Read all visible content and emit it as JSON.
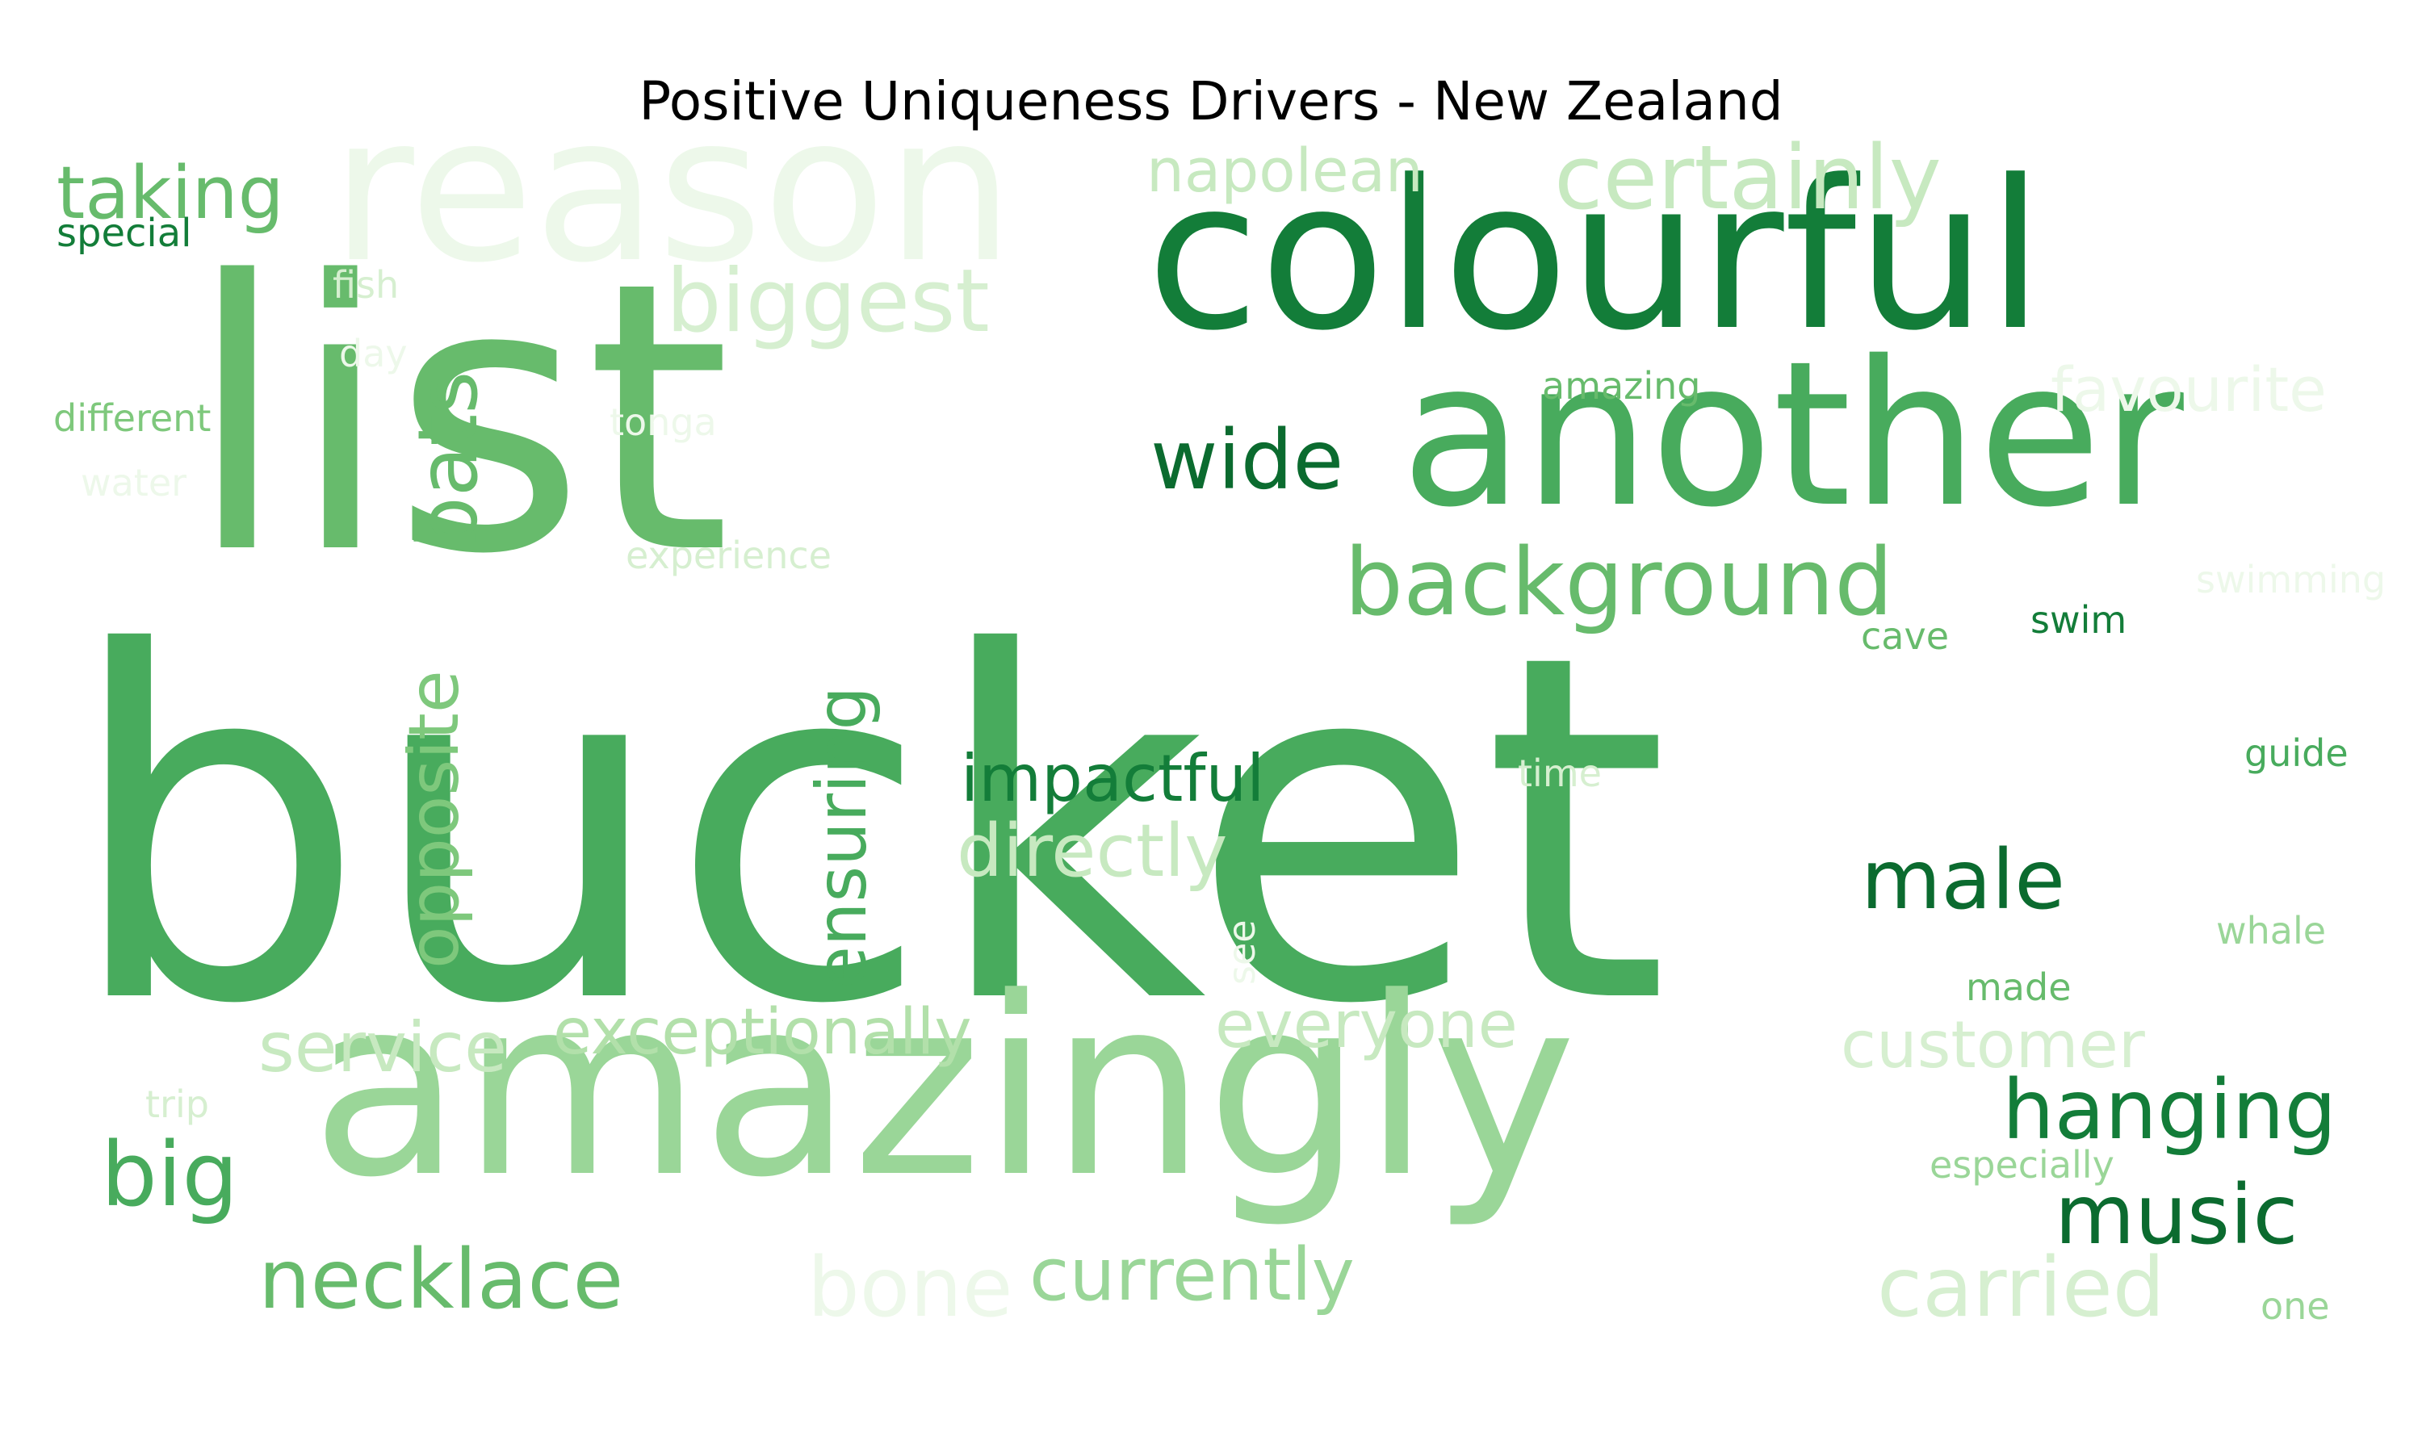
{
  "title": "Positive Uniqueness Drivers - New Zealand",
  "words": [
    {
      "text": "bucket",
      "color": "#48ab5d"
    },
    {
      "text": "list",
      "color": "#67bb6c"
    },
    {
      "text": "amazingly",
      "color": "#9ad698"
    },
    {
      "text": "reason",
      "color": "#edf8ea"
    },
    {
      "text": "colourful",
      "color": "#137d39"
    },
    {
      "text": "another",
      "color": "#48ab5d"
    },
    {
      "text": "background",
      "color": "#67bb6c"
    },
    {
      "text": "certainly",
      "color": "#c7e9c0"
    },
    {
      "text": "biggest",
      "color": "#d6efd0"
    },
    {
      "text": "napolean",
      "color": "#c7e9c0"
    },
    {
      "text": "taking",
      "color": "#67bb6c"
    },
    {
      "text": "special",
      "color": "#137d39"
    },
    {
      "text": "fish",
      "color": "#d6efd0"
    },
    {
      "text": "day",
      "color": "#edf8ea"
    },
    {
      "text": "different",
      "color": "#7ec87c"
    },
    {
      "text": "tonga",
      "color": "#edf8ea"
    },
    {
      "text": "water",
      "color": "#edf8ea"
    },
    {
      "text": "bats",
      "color": "#67bb6c"
    },
    {
      "text": "wide",
      "color": "#0b6b2f"
    },
    {
      "text": "amazing",
      "color": "#67bb6c"
    },
    {
      "text": "favourite",
      "color": "#edf8ea"
    },
    {
      "text": "experience",
      "color": "#d6efd0"
    },
    {
      "text": "swimming",
      "color": "#edf8ea"
    },
    {
      "text": "cave",
      "color": "#67bb6c"
    },
    {
      "text": "swim",
      "color": "#137d39"
    },
    {
      "text": "opposite",
      "color": "#7ec87c"
    },
    {
      "text": "ensuring",
      "color": "#48ab5d"
    },
    {
      "text": "impactful",
      "color": "#137d39"
    },
    {
      "text": "directly",
      "color": "#c7e9c0"
    },
    {
      "text": "time",
      "color": "#d6efd0"
    },
    {
      "text": "guide",
      "color": "#48ab5d"
    },
    {
      "text": "male",
      "color": "#0b6b2f"
    },
    {
      "text": "see",
      "color": "#edf8ea"
    },
    {
      "text": "whale",
      "color": "#9ad698"
    },
    {
      "text": "made",
      "color": "#67bb6c"
    },
    {
      "text": "service",
      "color": "#c7e9c0"
    },
    {
      "text": "exceptionally",
      "color": "#b2e0aa"
    },
    {
      "text": "everyone",
      "color": "#c7e9c0"
    },
    {
      "text": "customer",
      "color": "#d6efd0"
    },
    {
      "text": "trip",
      "color": "#d6efd0"
    },
    {
      "text": "big",
      "color": "#48ab5d"
    },
    {
      "text": "hanging",
      "color": "#137d39"
    },
    {
      "text": "especially",
      "color": "#9ad698"
    },
    {
      "text": "music",
      "color": "#0b6b2f"
    },
    {
      "text": "necklace",
      "color": "#67bb6c"
    },
    {
      "text": "bone",
      "color": "#edf8ea"
    },
    {
      "text": "currently",
      "color": "#9ad698"
    },
    {
      "text": "carried",
      "color": "#d6efd0"
    },
    {
      "text": "one",
      "color": "#9ad698"
    }
  ]
}
